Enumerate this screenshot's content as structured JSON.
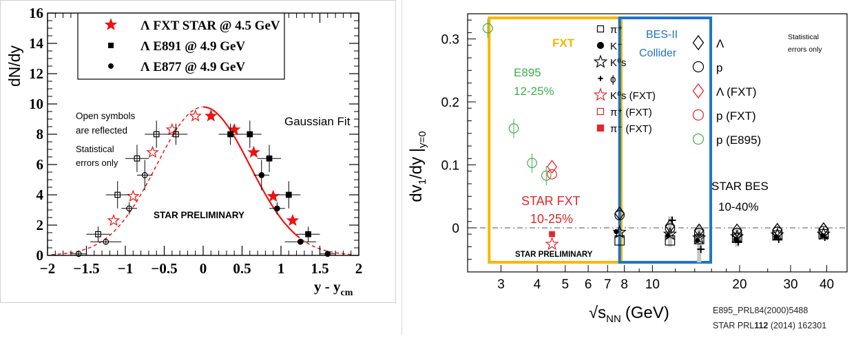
{
  "chart_data": [
    {
      "type": "scatter",
      "ylabel": "dN/dy",
      "xlabel": "y - y",
      "xlabel_sub": "cm",
      "xlim": [
        -2,
        2
      ],
      "ylim": [
        0,
        16
      ],
      "x_ticks": [
        "−2",
        "−1.5",
        "−1",
        "−0.5",
        "0",
        "0.5",
        "1",
        "1.5",
        "2"
      ],
      "y_ticks": [
        "0",
        "2",
        "4",
        "6",
        "8",
        "10",
        "12",
        "14",
        "16"
      ],
      "legend_position": "top",
      "legend": [
        {
          "label": "Λ FXT STAR @ 4.5 GeV",
          "marker": "star",
          "color": "#ee1111"
        },
        {
          "label": "Λ E891 @ 4.9 GeV",
          "marker": "square",
          "color": "#000000"
        },
        {
          "label": "Λ E877 @ 4.9 GeV",
          "marker": "circle",
          "color": "#000000"
        }
      ],
      "annotations": {
        "open_symbols_1": "Open symbols",
        "open_symbols_2": "are reflected",
        "stat_1": "Statistical",
        "stat_2": "errors only",
        "fit": "Gaussian Fit",
        "preliminary": "STAR PRELIMINARY"
      },
      "gauss_fit": {
        "amplitude": 9.8,
        "mean": 0.0,
        "sigma": 0.6
      },
      "series": [
        {
          "name": "Λ FXT STAR @ 4.5 GeV",
          "marker": "star",
          "filled": true,
          "color": "#ee1111",
          "points": [
            [
              0.1,
              9.2,
              0.4
            ],
            [
              0.4,
              8.3,
              0.3
            ],
            [
              0.65,
              6.8,
              0.3
            ],
            [
              0.9,
              3.9,
              0.3
            ],
            [
              1.15,
              2.3,
              0.3
            ]
          ]
        },
        {
          "name": "Λ FXT STAR @ 4.5 GeV (reflected)",
          "marker": "star",
          "filled": false,
          "color": "#ee1111",
          "points": [
            [
              -0.1,
              9.2,
              0.4
            ],
            [
              -0.4,
              8.3,
              0.3
            ],
            [
              -0.65,
              6.8,
              0.3
            ],
            [
              -0.9,
              3.9,
              0.3
            ],
            [
              -1.15,
              2.3,
              0.3
            ]
          ]
        },
        {
          "name": "Λ E891 @ 4.9 GeV",
          "marker": "square",
          "filled": true,
          "color": "#000000",
          "points": [
            [
              0.35,
              8.0,
              0.7,
              0.15
            ],
            [
              0.6,
              8.0,
              0.9,
              0.15
            ],
            [
              0.85,
              6.4,
              0.9,
              0.15
            ],
            [
              1.1,
              4.0,
              0.9,
              0.15
            ],
            [
              1.35,
              1.4,
              0.5,
              0.15
            ]
          ]
        },
        {
          "name": "Λ E891 @ 4.9 GeV (reflected)",
          "marker": "square",
          "filled": false,
          "color": "#000000",
          "points": [
            [
              -0.35,
              8.0,
              0.7,
              0.15
            ],
            [
              -0.6,
              8.0,
              0.9,
              0.15
            ],
            [
              -0.85,
              6.4,
              0.9,
              0.15
            ],
            [
              -1.1,
              4.0,
              0.9,
              0.15
            ],
            [
              -1.35,
              1.4,
              0.5,
              0.15
            ]
          ]
        },
        {
          "name": "Λ E877 @ 4.9 GeV",
          "marker": "circle",
          "filled": true,
          "color": "#000000",
          "points": [
            [
              0.75,
              5.3,
              1.0,
              0.1
            ],
            [
              0.95,
              3.1,
              0.4,
              0.1
            ],
            [
              1.25,
              0.9,
              0.2,
              0.2
            ],
            [
              1.6,
              0.1,
              0.1,
              0.1
            ]
          ]
        },
        {
          "name": "Λ E877 @ 4.9 GeV (reflected)",
          "marker": "circle",
          "filled": false,
          "color": "#000000",
          "points": [
            [
              -0.75,
              5.3,
              1.0,
              0.1
            ],
            [
              -0.95,
              3.1,
              0.4,
              0.1
            ],
            [
              -1.25,
              0.9,
              0.2,
              0.2
            ],
            [
              -1.6,
              0.1,
              0.1,
              0.1
            ]
          ]
        }
      ]
    },
    {
      "type": "scatter",
      "ylabel": "dv",
      "ylabel_sub": "1",
      "ylabel_rest": "/dy |",
      "ylabel_sub2": "y=0",
      "xlabel_root": "√",
      "xlabel": "s",
      "xlabel_sub": "NN",
      "xlabel_unit": "(GeV)",
      "x_scale": "log",
      "xlim": [
        2.3,
        47
      ],
      "ylim": [
        -0.07,
        0.34
      ],
      "x_ticks": [
        "3",
        "4",
        "5",
        "6",
        "7",
        "8",
        "10",
        "20",
        "30",
        "40"
      ],
      "y_ticks": [
        "0",
        "0.1",
        "0.2",
        "0.3"
      ],
      "regions": {
        "fxt": "FXT",
        "collider": "BES-II Collider"
      },
      "colors": {
        "fxt": "#f5b800",
        "collider": "#1e74c8",
        "e895": "#3fae4a",
        "fxt_red": "#e8242b"
      },
      "annotations": {
        "e895_1": "E895",
        "e895_2": "12-25%",
        "starfxt_1": "STAR FXT",
        "starfxt_2": "10-25%",
        "bes_1": "STAR BES",
        "bes_2": "10-40%",
        "preliminary": "STAR PRELIMINARY",
        "stat_1": "Statistical",
        "stat_2": "errors only"
      },
      "legend": [
        {
          "label": "π⁺",
          "marker": "open-square",
          "color": "#000000"
        },
        {
          "label": "K⁻",
          "marker": "circle",
          "color": "#000000"
        },
        {
          "label": "K⁰s",
          "marker": "open-star",
          "color": "#000000"
        },
        {
          "label": "ϕ",
          "marker": "plus",
          "color": "#000000"
        },
        {
          "label": "K⁰s (FXT)",
          "marker": "open-star",
          "color": "#e8242b"
        },
        {
          "label": "π⁺ (FXT)",
          "marker": "open-square",
          "color": "#e8242b"
        },
        {
          "label": "π⁻ (FXT)",
          "marker": "square",
          "color": "#e8242b"
        },
        {
          "label": "Λ",
          "marker": "open-diamond",
          "color": "#000000"
        },
        {
          "label": "p",
          "marker": "open-circle",
          "color": "#000000"
        },
        {
          "label": "Λ (FXT)",
          "marker": "open-diamond",
          "color": "#e8242b"
        },
        {
          "label": "p (FXT)",
          "marker": "open-circle",
          "color": "#e8242b"
        },
        {
          "label": "p (E895)",
          "marker": "open-circle",
          "color": "#3fae4a"
        }
      ],
      "series": [
        {
          "name": "p (E895)",
          "marker": "open-circle",
          "color": "#3fae4a",
          "points": [
            [
              2.7,
              0.317
            ],
            [
              3.32,
              0.158
            ],
            [
              3.84,
              0.103
            ],
            [
              4.3,
              0.083
            ]
          ]
        },
        {
          "name": "Λ (FXT)",
          "marker": "open-diamond",
          "color": "#e8242b",
          "points": [
            [
              4.5,
              0.097
            ]
          ]
        },
        {
          "name": "p (FXT)",
          "marker": "open-circle",
          "color": "#e8242b",
          "points": [
            [
              4.5,
              0.085
            ]
          ]
        },
        {
          "name": "π⁻ (FXT)",
          "marker": "square",
          "color": "#e8242b",
          "points": [
            [
              4.5,
              -0.01
            ]
          ]
        },
        {
          "name": "K⁰s (FXT)",
          "marker": "open-star",
          "color": "#e8242b",
          "points": [
            [
              4.5,
              -0.026
            ]
          ]
        },
        {
          "name": "Λ",
          "marker": "open-diamond",
          "color": "#000000",
          "points": [
            [
              7.7,
              0.023
            ],
            [
              11.5,
              0.003
            ],
            [
              14.5,
              -0.004
            ],
            [
              19.6,
              -0.004
            ],
            [
              27,
              -0.003
            ],
            [
              39,
              -0.002
            ]
          ]
        },
        {
          "name": "p",
          "marker": "open-circle",
          "color": "#000000",
          "points": [
            [
              7.7,
              0.02
            ],
            [
              11.5,
              -0.001
            ],
            [
              14.5,
              -0.008
            ],
            [
              19.6,
              -0.008
            ],
            [
              27,
              -0.006
            ],
            [
              39,
              -0.005
            ]
          ]
        },
        {
          "name": "K⁰s",
          "marker": "open-star",
          "color": "#000000",
          "points": [
            [
              7.7,
              -0.007
            ],
            [
              11.5,
              -0.01
            ],
            [
              14.5,
              -0.016
            ],
            [
              19.6,
              -0.014
            ],
            [
              27,
              -0.011
            ],
            [
              39,
              -0.01
            ]
          ]
        },
        {
          "name": "π⁺",
          "marker": "open-square",
          "color": "#000000",
          "points": [
            [
              7.7,
              -0.02
            ],
            [
              11.5,
              -0.02
            ],
            [
              14.5,
              -0.018
            ],
            [
              19.6,
              -0.016
            ],
            [
              27,
              -0.012
            ],
            [
              39,
              -0.01
            ]
          ]
        },
        {
          "name": "K⁻",
          "marker": "circle",
          "color": "#000000",
          "points": [
            [
              7.5,
              -0.006
            ],
            [
              11.3,
              -0.012
            ],
            [
              14.3,
              -0.02
            ],
            [
              19.4,
              -0.018
            ],
            [
              26.7,
              -0.014
            ],
            [
              38.6,
              -0.012
            ]
          ]
        },
        {
          "name": "ϕ",
          "marker": "plus",
          "color": "#000000",
          "points": [
            [
              11.7,
              0.012
            ],
            [
              14.7,
              -0.034
            ],
            [
              19.8,
              -0.022
            ],
            [
              27.3,
              -0.018
            ],
            [
              39.4,
              -0.015
            ]
          ]
        }
      ]
    }
  ],
  "references": {
    "ref1": "E895_PRL84(2000)5488",
    "ref2_a": "STAR PRL",
    "ref2_b": "112",
    "ref2_c": " (2014) 162301"
  }
}
